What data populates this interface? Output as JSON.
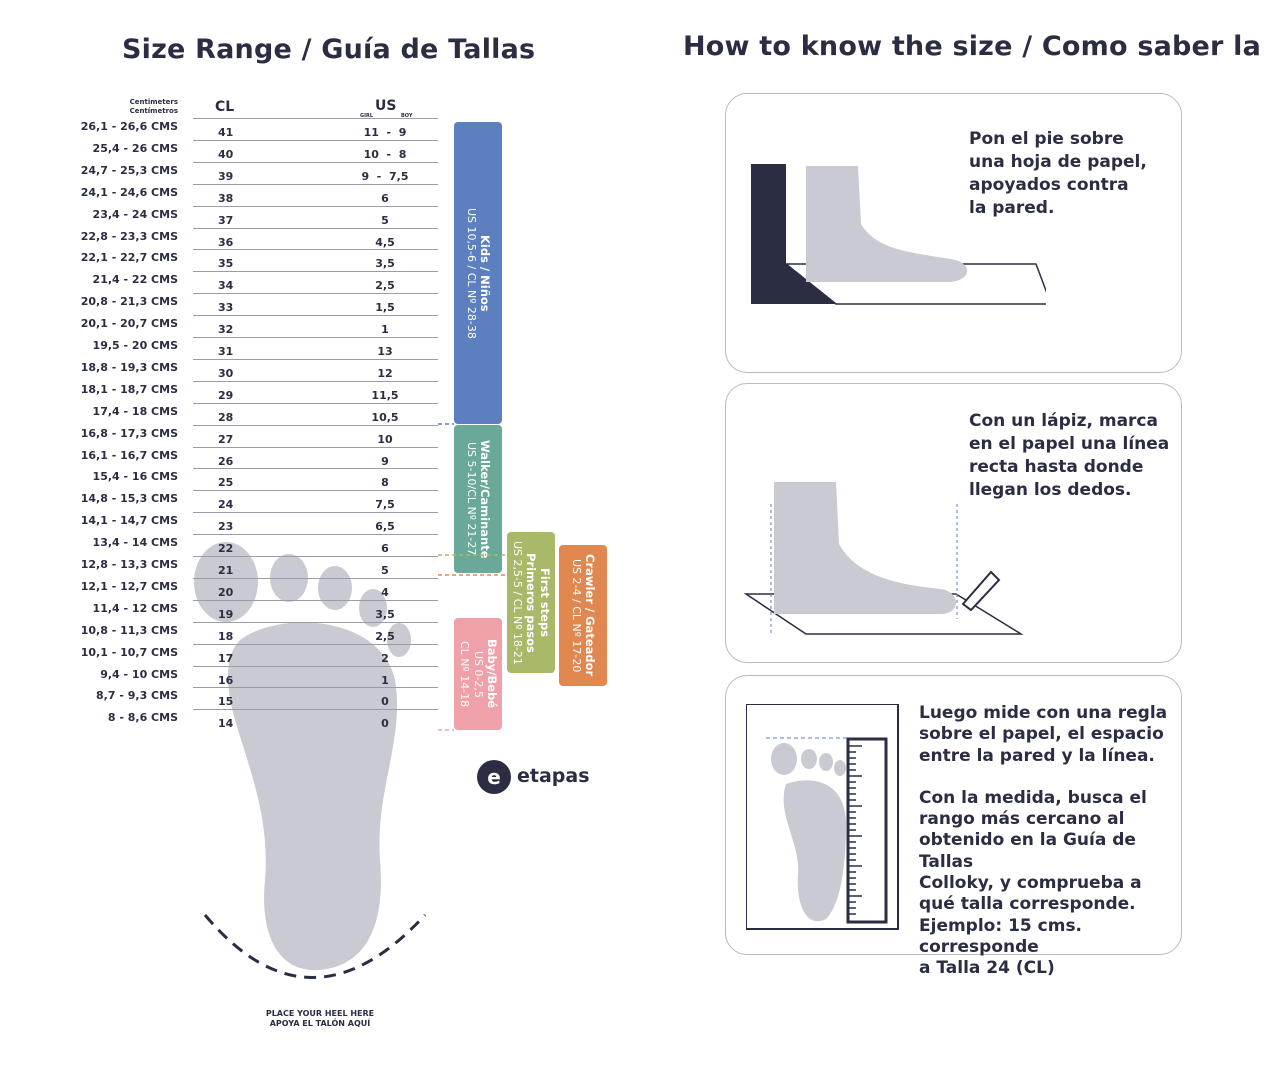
{
  "left_title": "Size Range / Guía de Tallas",
  "right_title": "How to know the size / Como saber la talla",
  "table": {
    "cm_header": [
      "Centimeters",
      "Centímetros"
    ],
    "cl_header": "CL",
    "us_header": "US",
    "girl": "GIRL",
    "boy": "BOY",
    "rows": [
      {
        "cm": "26,1 - 26,6 CMS",
        "cl": "41",
        "us": "11  -  9"
      },
      {
        "cm": "25,4 - 26 CMS",
        "cl": "40",
        "us": "10  -  8"
      },
      {
        "cm": "24,7 - 25,3 CMS",
        "cl": "39",
        "us": "9  -  7,5"
      },
      {
        "cm": "24,1 - 24,6 CMS",
        "cl": "38",
        "us": "6"
      },
      {
        "cm": "23,4 - 24 CMS",
        "cl": "37",
        "us": "5"
      },
      {
        "cm": "22,8 - 23,3 CMS",
        "cl": "36",
        "us": "4,5"
      },
      {
        "cm": "22,1 - 22,7 CMS",
        "cl": "35",
        "us": "3,5"
      },
      {
        "cm": "21,4 - 22 CMS",
        "cl": "34",
        "us": "2,5"
      },
      {
        "cm": "20,8 - 21,3 CMS",
        "cl": "33",
        "us": "1,5"
      },
      {
        "cm": "20,1 - 20,7 CMS",
        "cl": "32",
        "us": "1"
      },
      {
        "cm": "19,5 - 20 CMS",
        "cl": "31",
        "us": "13"
      },
      {
        "cm": "18,8 - 19,3 CMS",
        "cl": "30",
        "us": "12"
      },
      {
        "cm": "18,1 - 18,7 CMS",
        "cl": "29",
        "us": "11,5"
      },
      {
        "cm": "17,4 - 18 CMS",
        "cl": "28",
        "us": "10,5"
      },
      {
        "cm": "16,8 - 17,3 CMS",
        "cl": "27",
        "us": "10"
      },
      {
        "cm": "16,1 - 16,7 CMS",
        "cl": "26",
        "us": "9"
      },
      {
        "cm": "15,4 - 16 CMS",
        "cl": "25",
        "us": "8"
      },
      {
        "cm": "14,8 - 15,3 CMS",
        "cl": "24",
        "us": "7,5"
      },
      {
        "cm": "14,1 - 14,7 CMS",
        "cl": "23",
        "us": "6,5"
      },
      {
        "cm": "13,4 - 14 CMS",
        "cl": "22",
        "us": "6"
      },
      {
        "cm": "12,8 - 13,3 CMS",
        "cl": "21",
        "us": "5"
      },
      {
        "cm": "12,1 - 12,7 CMS",
        "cl": "20",
        "us": "4"
      },
      {
        "cm": "11,4 - 12 CMS",
        "cl": "19",
        "us": "3,5"
      },
      {
        "cm": "10,8 - 11,3 CMS",
        "cl": "18",
        "us": "2,5"
      },
      {
        "cm": "10,1 - 10,7 CMS",
        "cl": "17",
        "us": "2"
      },
      {
        "cm": "9,4 - 10 CMS",
        "cl": "16",
        "us": "1"
      },
      {
        "cm": "8,7 - 9,3 CMS",
        "cl": "15",
        "us": "0"
      },
      {
        "cm": "8 - 8,6 CMS",
        "cl": "14",
        "us": "0"
      }
    ]
  },
  "stages": [
    {
      "title": "Kids / Niños",
      "sub": "US 10,5-6 / CL Nº 28-38",
      "color": "#5b7fbf"
    },
    {
      "title": "Walker/Caminante",
      "sub": "US 5-10/CL Nº 21-27",
      "color": "#6aa89a"
    },
    {
      "title": "First steps",
      "title2": "Primeros pasos",
      "sub": "US 2,5-5 / CL Nº 18-21",
      "color": "#a9b96a"
    },
    {
      "title": "Crawler / Gateador",
      "sub": "US 2-4 / CL Nº 17-20",
      "color": "#e0884f"
    },
    {
      "title": "Baby/Bebé",
      "sub": "US 0-2,5",
      "sub2": "CL Nº 14-18",
      "color": "#f0a0a8"
    }
  ],
  "heel_text": [
    "PLACE YOUR HEEL HERE",
    "APOYA EL TALÓN AQUÍ"
  ],
  "logo": "etapas",
  "steps": [
    {
      "text": [
        "Pon el pie sobre",
        "una hoja de papel,",
        "apoyados contra",
        "la pared."
      ]
    },
    {
      "text": [
        "Con un lápiz, marca",
        "en el papel una línea",
        "recta hasta donde",
        "llegan los dedos."
      ]
    },
    {
      "text": [
        "Luego mide con una regla",
        "sobre el papel, el espacio",
        "entre la pared y la línea.",
        "",
        "Con la medida, busca el",
        "rango más cercano al",
        "obtenido en la Guía de Tallas",
        "Colloky, y comprueba a",
        "qué talla corresponde.",
        "Ejemplo:  15 cms. corresponde",
        "a Talla 24 (CL)"
      ]
    }
  ]
}
